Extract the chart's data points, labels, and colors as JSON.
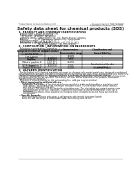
{
  "title": "Safety data sheet for chemical products (SDS)",
  "header_left": "Product Name: Lithium Ion Battery Cell",
  "header_right_line1": "Document Control: SER-04-0001B",
  "header_right_line2": "Established / Revision: Dec.7.2016",
  "section1_title": "1. PRODUCT AND COMPANY IDENTIFICATION",
  "section1_lines": [
    "  Product name: Lithium Ion Battery Cell",
    "  Product code: Cylindrical-type cell",
    "    (14166500, 14186500, 14186504)",
    "  Company name:    Sanyo Electric Co., Ltd., Mobile Energy Company",
    "  Address:           2221  Kamitosaen, Sumoto-City, Hyogo, Japan",
    "  Telephone number:    +81-799-26-4111",
    "  Fax number:  +81-799-26-4129",
    "  Emergency telephone number (daytime): +81-799-26-2642",
    "                                [Night and holiday]: +81-799-26-4101"
  ],
  "section2_title": "2. COMPOSITION / INFORMATION ON INGREDIENTS",
  "section2_lines": [
    "  Substance or preparation: Preparation",
    "  Information about the chemical nature of product:"
  ],
  "table_col_headers": [
    "Component chemical name",
    "CAS number",
    "Concentration /\nConcentration range",
    "Classification and\nhazard labeling"
  ],
  "table_subheader": "General name",
  "table_rows": [
    [
      "Lithium cobalt tentacle\n(LiMnCoNiO2)",
      "-",
      "30-60%",
      "-"
    ],
    [
      "Iron",
      "7439-89-6",
      "15-25%",
      "-"
    ],
    [
      "Aluminum",
      "7429-90-5",
      "2-5%",
      "-"
    ],
    [
      "Graphite\n(Metal in graphite-1)\n(Al-Mn in graphite-2)",
      "77082-42-5\n77043-44-0",
      "10-25%",
      "-"
    ],
    [
      "Copper",
      "7440-50-8",
      "5-15%",
      "Sensitization of the skin\ngroup No.2"
    ],
    [
      "Organic electrolyte",
      "-",
      "10-20%",
      "Inflammable liquid"
    ]
  ],
  "section3_title": "3. HAZARDS IDENTIFICATION",
  "section3_para1": [
    "  For the battery cell, chemical materials are stored in a hermetically sealed metal case, designed to withstand",
    "temperatures by pressure-resistance construction during normal use. As a result, during normal use, there is no",
    "physical danger of ignition or explosion and there is no danger of hazardous materials leakage.",
    "  However, if exposed to a fire, added mechanical shocks, decomposed, when electric short-circuit may occur,",
    "the gas insides can not be operated. The battery cell case will be breached or fire-petbane, hazardous",
    "materials may be released.",
    "  Moreover, if heated strongly by the surrounding fire, solid gas may be emitted."
  ],
  "section3_bullet1_title": "Most important hazard and effects:",
  "section3_bullet1_lines": [
    "  Human health effects:",
    "    Inhalation: The release of the electrolyte has an anesthetic action and stimulates a respiratory tract.",
    "    Skin contact: The release of the electrolyte stimulates a skin. The electrolyte skin contact causes a",
    "    sore and stimulation on the skin.",
    "    Eye contact: The release of the electrolyte stimulates eyes. The electrolyte eye contact causes a sore",
    "    and stimulation on the eye. Especially, a substance that causes a strong inflammation of the eye is",
    "    contained.",
    "    Environmental effects: Since a battery cell remains in the environment, do not throw out it into the",
    "    environment."
  ],
  "section3_bullet2_title": "Specific hazards:",
  "section3_bullet2_lines": [
    "  If the electrolyte contacts with water, it will generate detrimental hydrogen fluoride.",
    "  Since the said electrolyte is inflammable liquid, do not bring close to fire."
  ],
  "bg_color": "#ffffff",
  "text_color": "#1a1a1a",
  "line_color": "#888888",
  "table_header_bg": "#c8c8c8",
  "table_row_bg": "#ffffff"
}
